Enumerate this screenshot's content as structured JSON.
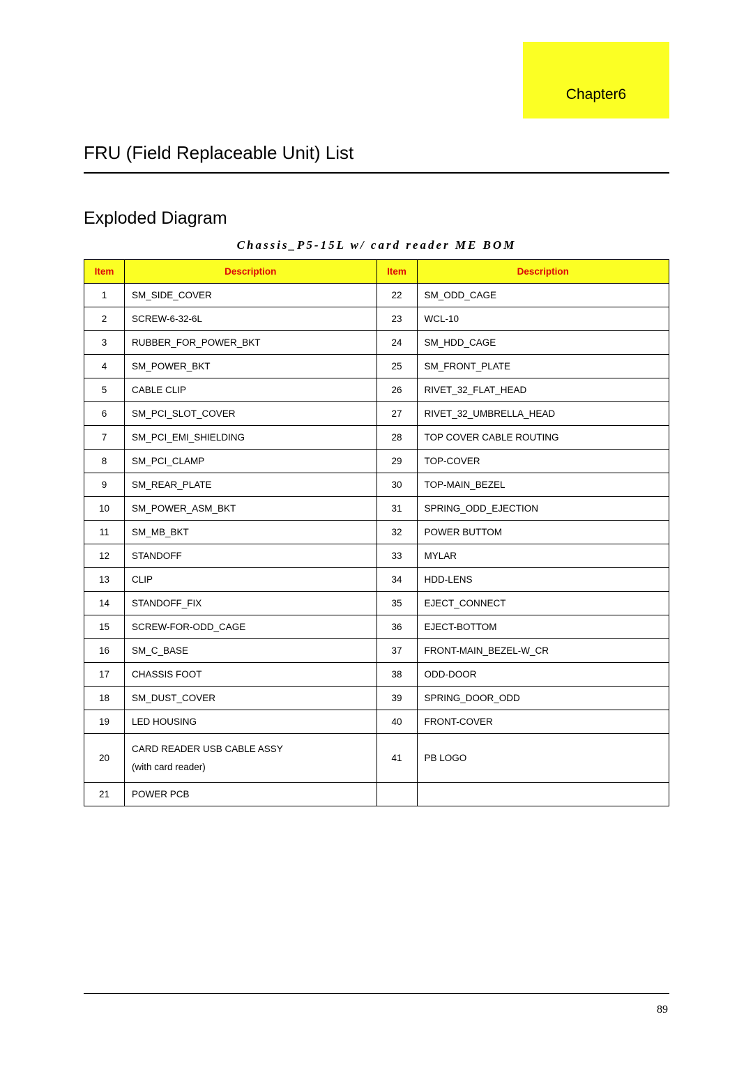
{
  "chapter": "Chapter6",
  "heading1": "FRU (Field Replaceable Unit) List",
  "heading2": "Exploded Diagram",
  "subtitle": "Chassis_P5-15L w/ card reader ME BOM",
  "pageNumber": "89",
  "headers": {
    "item": "Item",
    "desc": "Description"
  },
  "colors": {
    "highlight": "#fbff24",
    "headerText": "#dc0808"
  },
  "rows": [
    {
      "a": "1",
      "ad": "SM_SIDE_COVER",
      "b": "22",
      "bd": "SM_ODD_CAGE"
    },
    {
      "a": "2",
      "ad": "SCREW-6-32-6L",
      "b": "23",
      "bd": "WCL-10"
    },
    {
      "a": "3",
      "ad": "RUBBER_FOR_POWER_BKT",
      "b": "24",
      "bd": "SM_HDD_CAGE"
    },
    {
      "a": "4",
      "ad": "SM_POWER_BKT",
      "b": "25",
      "bd": "SM_FRONT_PLATE"
    },
    {
      "a": "5",
      "ad": "CABLE CLIP",
      "b": "26",
      "bd": "RIVET_32_FLAT_HEAD"
    },
    {
      "a": "6",
      "ad": "SM_PCI_SLOT_COVER",
      "b": "27",
      "bd": "RIVET_32_UMBRELLA_HEAD"
    },
    {
      "a": "7",
      "ad": "SM_PCI_EMI_SHIELDING",
      "b": "28",
      "bd": "TOP COVER CABLE ROUTING"
    },
    {
      "a": "8",
      "ad": "SM_PCI_CLAMP",
      "b": "29",
      "bd": "TOP-COVER"
    },
    {
      "a": "9",
      "ad": "SM_REAR_PLATE",
      "b": "30",
      "bd": "TOP-MAIN_BEZEL"
    },
    {
      "a": "10",
      "ad": "SM_POWER_ASM_BKT",
      "b": "31",
      "bd": "SPRING_ODD_EJECTION"
    },
    {
      "a": "11",
      "ad": "SM_MB_BKT",
      "b": "32",
      "bd": "POWER BUTTOM"
    },
    {
      "a": "12",
      "ad": "STANDOFF",
      "b": "33",
      "bd": "MYLAR"
    },
    {
      "a": "13",
      "ad": "CLIP",
      "b": "34",
      "bd": "HDD-LENS"
    },
    {
      "a": "14",
      "ad": "STANDOFF_FIX",
      "b": "35",
      "bd": "EJECT_CONNECT"
    },
    {
      "a": "15",
      "ad": "SCREW-FOR-ODD_CAGE",
      "b": "36",
      "bd": "EJECT-BOTTOM"
    },
    {
      "a": "16",
      "ad": "SM_C_BASE",
      "b": "37",
      "bd": "FRONT-MAIN_BEZEL-W_CR"
    },
    {
      "a": "17",
      "ad": "CHASSIS FOOT",
      "b": "38",
      "bd": "ODD-DOOR"
    },
    {
      "a": "18",
      "ad": "SM_DUST_COVER",
      "b": "39",
      "bd": "SPRING_DOOR_ODD"
    },
    {
      "a": "19",
      "ad": "LED HOUSING",
      "b": "40",
      "bd": "FRONT-COVER"
    },
    {
      "a": "20",
      "ad": "CARD READER USB CABLE ASSY (with card reader)",
      "adMulti": [
        "CARD READER USB CABLE ASSY",
        "(with card reader)"
      ],
      "b": "41",
      "bd": "PB LOGO"
    },
    {
      "a": "21",
      "ad": "POWER PCB",
      "b": "",
      "bd": ""
    }
  ]
}
